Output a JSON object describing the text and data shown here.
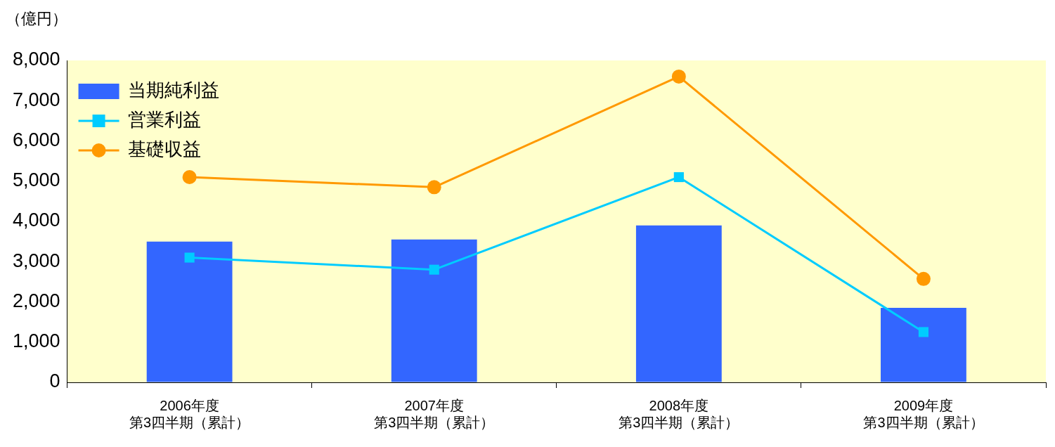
{
  "chart_data": {
    "type": "bar",
    "ylabel": "（億円）",
    "categories": [
      "2006年度第3四半期（累計）",
      "2007年度第3四半期（累計）",
      "2008年度第3四半期（累計）",
      "2009年度第3四半期（累計）"
    ],
    "series": [
      {
        "name": "当期純利益",
        "color": "#3366ff",
        "values": [
          3500,
          3550,
          3900,
          1850
        ]
      },
      {
        "name": "営業利益",
        "type": "line",
        "color": "#00ccff",
        "marker": "square",
        "values": [
          3100,
          2800,
          5100,
          1250
        ]
      },
      {
        "name": "基礎収益",
        "type": "line",
        "color": "#ff9900",
        "marker": "circle",
        "values": [
          5100,
          4850,
          7600,
          2570
        ]
      }
    ],
    "ylim": [
      0,
      8000
    ],
    "yticks": [
      0,
      {
        "value": 1000,
        "label": "1,000"
      },
      {
        "value": 2000,
        "label": "2,000"
      },
      {
        "value": 3000,
        "label": "3,000"
      },
      {
        "value": 4000,
        "label": "4,000"
      },
      {
        "value": 5000,
        "label": "5,000"
      },
      {
        "value": 6000,
        "label": "6,000"
      },
      {
        "value": 7000,
        "label": "7,000"
      },
      {
        "value": 8000,
        "label": "8,000"
      }
    ],
    "grid": false,
    "legend": "top left",
    "line_style": "solid"
  }
}
